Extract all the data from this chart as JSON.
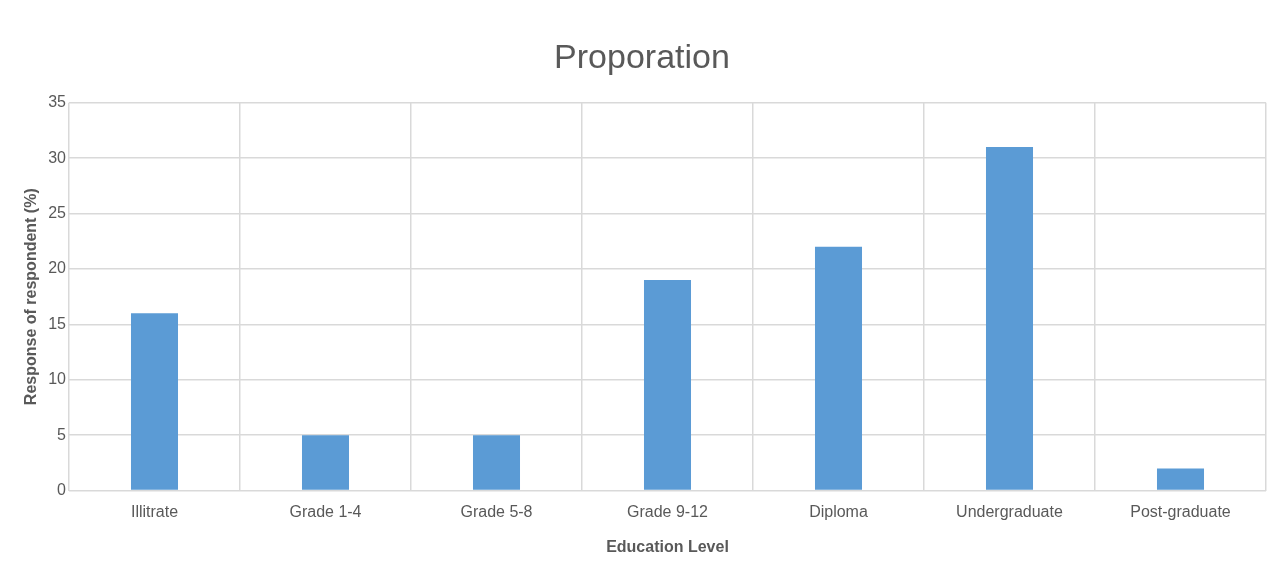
{
  "chart_data": {
    "type": "bar",
    "title": "Proporation",
    "xlabel": "Education Level",
    "ylabel": "Response of respondent (%)",
    "categories": [
      "Illitrate",
      "Grade 1-4",
      "Grade 5-8",
      "Grade 9-12",
      "Diploma",
      "Undergraduate",
      "Post-graduate"
    ],
    "values": [
      16,
      5,
      5,
      19,
      22,
      31,
      2
    ],
    "color": "#5b9bd5",
    "ylim": [
      0,
      35
    ],
    "yticks": [
      0,
      5,
      10,
      15,
      20,
      25,
      30,
      35
    ],
    "grid": true,
    "legend": false
  }
}
